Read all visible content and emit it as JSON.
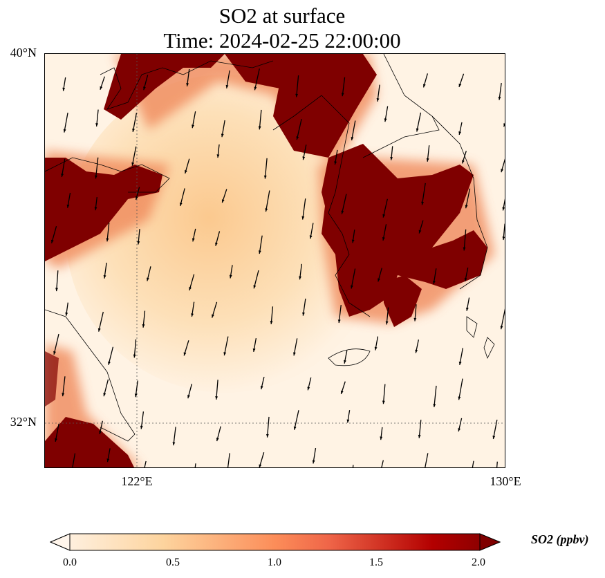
{
  "title": {
    "line1": "SO2 at surface",
    "line2": "Time: 2024-02-25 22:00:00"
  },
  "axes": {
    "lat_labels": [
      "40°N",
      "32°N"
    ],
    "lon_labels": [
      "122°E",
      "130°E"
    ]
  },
  "colorbar": {
    "label": "SO2 (ppbv)",
    "ticks": [
      "0.0",
      "0.5",
      "1.0",
      "1.5",
      "2.0"
    ],
    "range": [
      0,
      2.0
    ],
    "colors": [
      "#fff5eb",
      "#fdd49e",
      "#fc8d59",
      "#ef6548",
      "#b30000",
      "#7f0000"
    ]
  }
}
